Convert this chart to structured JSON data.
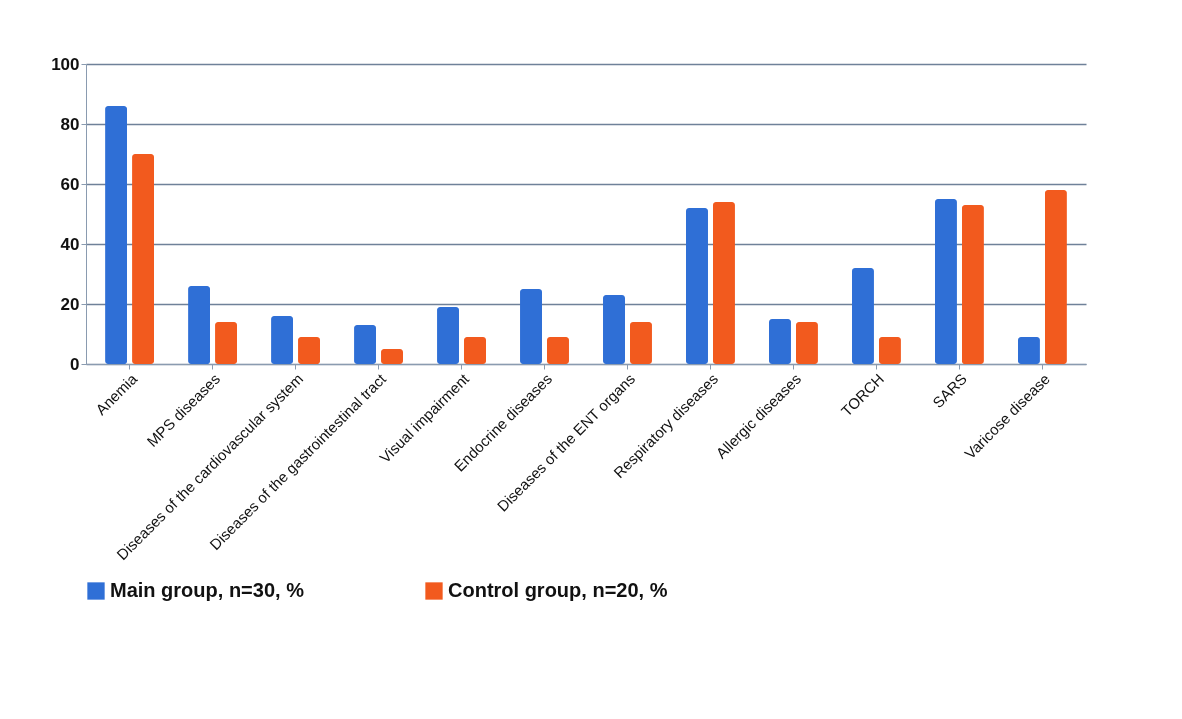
{
  "chart_data": {
    "type": "bar",
    "categories": [
      "Anemia",
      "MPS diseases",
      "Diseases of the cardiovascular system",
      "Diseases of the gastrointestinal tract",
      "Visual impairment",
      "Endocrine diseases",
      "Diseases of the ENT organs",
      "Respiratory diseases",
      "Allergic diseases",
      "TORCH",
      "SARS",
      "Varicose disease"
    ],
    "series": [
      {
        "name": "Main group, n=30, %",
        "color": "#2f6fd6",
        "values": [
          86,
          26,
          16,
          13,
          19,
          25,
          23,
          52,
          15,
          32,
          55,
          9
        ]
      },
      {
        "name": "Control group, n=20, %",
        "color": "#f25a1e",
        "values": [
          70,
          14,
          9,
          5,
          9,
          9,
          14,
          54,
          14,
          9,
          53,
          58
        ]
      }
    ],
    "ylim": [
      0,
      100
    ],
    "yticks": [
      0,
      20,
      40,
      60,
      80,
      100
    ],
    "grid": "y",
    "legend": "bottom"
  }
}
